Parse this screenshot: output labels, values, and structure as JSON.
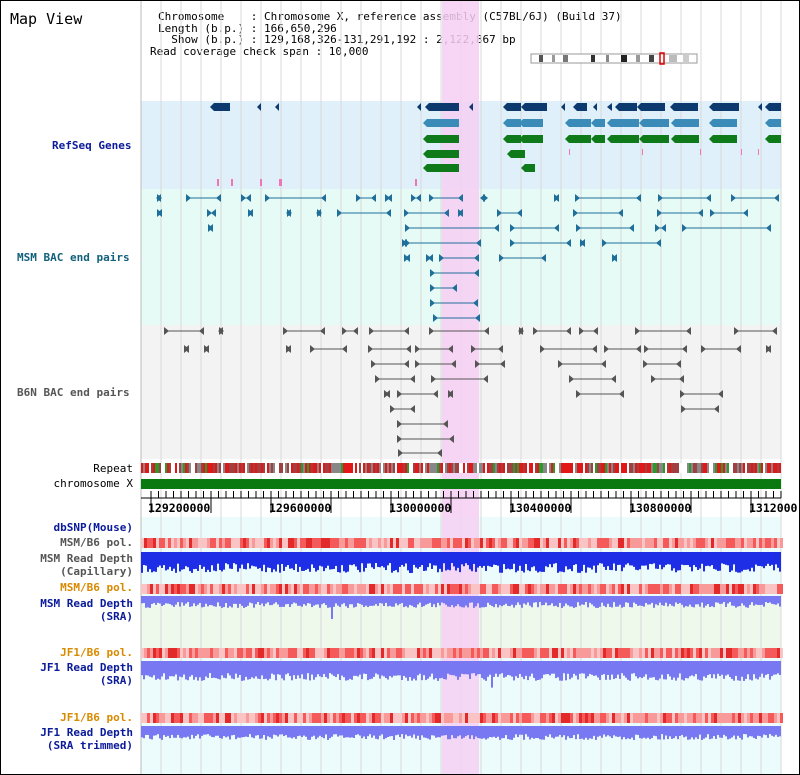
{
  "app": {
    "title": "Map View"
  },
  "info": {
    "chromosome": "Chromosome    : Chromosome X, reference assembly (C57BL/6J) (Build 37)",
    "length": "Length (b.p.) : 166,650,296",
    "show": "  Show (b.p.) : 129,168,326-131,291,192 : 2,122,867 bp",
    "coverage": "Read coverage check span : 10,000"
  },
  "tracks": {
    "refseq": "RefSeq Genes",
    "msm_bac": "MSM BAC end pairs",
    "b6n_bac": "B6N BAC end pairs",
    "repeat": "Repeat",
    "chromosome": "chromosome X",
    "dbsnp": "dbSNP(Mouse)",
    "msm_b6_pol": "MSM/B6 pol.",
    "msm_read_cap_1": "MSM Read Depth",
    "msm_read_cap_2": "(Capillary)",
    "msm_b6_pol2": "MSM/B6 pol.",
    "msm_read_sra_1": "MSM Read Depth",
    "msm_read_sra_2": "(SRA)",
    "jf1_b6_pol": "JF1/B6 pol.",
    "jf1_read_sra_1": "JF1 Read Depth",
    "jf1_read_sra_2": "(SRA)",
    "jf1_b6_pol2": "JF1/B6 pol.",
    "jf1_read_trim_1": "JF1 Read Depth",
    "jf1_read_trim_2": "(SRA trimmed)"
  },
  "axis": {
    "ticks": [
      "129200000",
      "129600000",
      "130000000",
      "130400000",
      "130800000",
      "1312000"
    ]
  },
  "colors": {
    "refseq_bg": "#dff0fb",
    "msm_bg": "#e6fbf6",
    "highlight": "#f6cff3",
    "gene_dark": "#0d3a6e",
    "gene_mid": "#3b8bb8",
    "gene_green": "#0f7a1a",
    "bac_msm": "#1f6f9a",
    "bac_b6n": "#555555",
    "label_blue": "#0a1a9a",
    "label_orange": "#d88a00",
    "label_teal": "#12607c",
    "label_gray": "#555555",
    "depth_blue": "#1d2ee6",
    "depth_light": "#7878f2"
  }
}
